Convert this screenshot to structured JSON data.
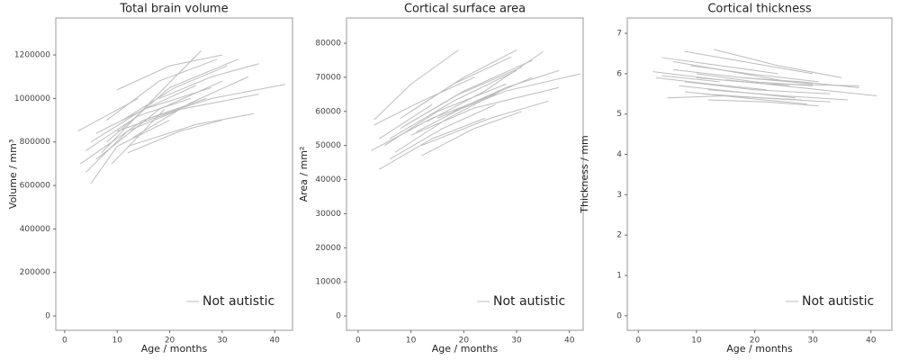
{
  "chart_data": [
    {
      "type": "line",
      "title": "Total brain volume",
      "x_label": "Age / months",
      "y_label": "Volume / mm³",
      "xlim": [
        -1.7,
        43.4
      ],
      "ylim": [
        -66000,
        1370000
      ],
      "xticks": [
        0,
        10,
        20,
        30,
        40
      ],
      "yticks": [
        0,
        200000,
        400000,
        600000,
        800000,
        1000000,
        1200000
      ],
      "legend": "bottom-right",
      "series": [
        {
          "name": "Not autistic",
          "color": "#bdbdbd",
          "lines": [
            {
              "x": [
                3,
                15,
                27
              ],
              "values": [
                700000,
                900000,
                1000000
              ]
            },
            {
              "x": [
                4,
                12,
                22
              ],
              "values": [
                660000,
                850000,
                950000
              ]
            },
            {
              "x": [
                5,
                10,
                20
              ],
              "values": [
                610000,
                780000,
                900000
              ]
            },
            {
              "x": [
                2.5,
                14
              ],
              "values": [
                850000,
                1000000
              ]
            },
            {
              "x": [
                6,
                18,
                30
              ],
              "values": [
                720000,
                950000,
                1080000
              ]
            },
            {
              "x": [
                8,
                20,
                33
              ],
              "values": [
                800000,
                1050000,
                1180000
              ]
            },
            {
              "x": [
                10,
                20,
                30
              ],
              "values": [
                1040000,
                1150000,
                1200000
              ]
            },
            {
              "x": [
                7,
                17,
                26
              ],
              "values": [
                750000,
                1000000,
                1220000
              ]
            },
            {
              "x": [
                12,
                25,
                36
              ],
              "values": [
                780000,
                880000,
                930000
              ]
            },
            {
              "x": [
                10,
                22,
                37
              ],
              "values": [
                850000,
                950000,
                1020000
              ]
            },
            {
              "x": [
                15,
                28,
                42
              ],
              "values": [
                900000,
                1000000,
                1065000
              ]
            },
            {
              "x": [
                5,
                15,
                28
              ],
              "values": [
                800000,
                950000,
                1050000
              ]
            },
            {
              "x": [
                9,
                19
              ],
              "values": [
                700000,
                950000
              ]
            },
            {
              "x": [
                11,
                21,
                31
              ],
              "values": [
                900000,
                1050000,
                1150000
              ]
            },
            {
              "x": [
                6,
                16,
                25
              ],
              "values": [
                840000,
                960000,
                1060000
              ]
            },
            {
              "x": [
                13,
                24,
                35
              ],
              "values": [
                820000,
                980000,
                1100000
              ]
            },
            {
              "x": [
                4,
                14,
                24
              ],
              "values": [
                760000,
                920000,
                1000000
              ]
            },
            {
              "x": [
                18,
                28,
                37
              ],
              "values": [
                1000000,
                1100000,
                1160000
              ]
            },
            {
              "x": [
                8,
                18,
                29
              ],
              "values": [
                900000,
                1080000,
                1180000
              ]
            },
            {
              "x": [
                12,
                22,
                30
              ],
              "values": [
                750000,
                850000,
                900000
              ]
            }
          ]
        }
      ]
    },
    {
      "type": "line",
      "title": "Cortical surface area",
      "x_label": "Age / months",
      "y_label": "Area / mm²",
      "xlim": [
        -2.2,
        42.6
      ],
      "ylim": [
        -4200,
        87400
      ],
      "xticks": [
        0,
        10,
        20,
        30,
        40
      ],
      "yticks": [
        0,
        10000,
        20000,
        30000,
        40000,
        50000,
        60000,
        70000,
        80000
      ],
      "legend": "bottom-right",
      "series": [
        {
          "name": "Not autistic",
          "color": "#bdbdbd",
          "lines": [
            {
              "x": [
                2.5,
                14,
                26
              ],
              "values": [
                48500,
                58000,
                65000
              ]
            },
            {
              "x": [
                3,
                12,
                22
              ],
              "values": [
                56000,
                63000,
                70000
              ]
            },
            {
              "x": [
                4,
                14,
                24
              ],
              "values": [
                43000,
                52000,
                58000
              ]
            },
            {
              "x": [
                5,
                15,
                28
              ],
              "values": [
                50000,
                60000,
                68000
              ]
            },
            {
              "x": [
                3,
                10,
                19
              ],
              "values": [
                57500,
                68000,
                78000
              ]
            },
            {
              "x": [
                6,
                18,
                30
              ],
              "values": [
                52000,
                63000,
                72000
              ]
            },
            {
              "x": [
                8,
                20,
                33
              ],
              "values": [
                55000,
                66000,
                75000
              ]
            },
            {
              "x": [
                10,
                20,
                30
              ],
              "values": [
                60000,
                70000,
                78000
              ]
            },
            {
              "x": [
                12,
                25,
                36
              ],
              "values": [
                50000,
                58000,
                63000
              ]
            },
            {
              "x": [
                10,
                22,
                38
              ],
              "values": [
                53000,
                61000,
                67000
              ]
            },
            {
              "x": [
                15,
                28,
                42
              ],
              "values": [
                58000,
                66000,
                71000
              ]
            },
            {
              "x": [
                7,
                17,
                27
              ],
              "values": [
                48000,
                58000,
                66000
              ]
            },
            {
              "x": [
                9,
                19,
                31
              ],
              "values": [
                56000,
                65000,
                73000
              ]
            },
            {
              "x": [
                11,
                21,
                33
              ],
              "values": [
                54000,
                62000,
                70000
              ]
            },
            {
              "x": [
                6,
                16,
                26
              ],
              "values": [
                46000,
                55000,
                62000
              ]
            },
            {
              "x": [
                13,
                24,
                35
              ],
              "values": [
                57000,
                66000,
                77500
              ]
            },
            {
              "x": [
                4,
                14
              ],
              "values": [
                52000,
                62000
              ]
            },
            {
              "x": [
                18,
                28,
                38
              ],
              "values": [
                60000,
                67000,
                72000
              ]
            },
            {
              "x": [
                8,
                18,
                29
              ],
              "values": [
                58000,
                68000,
                76000
              ]
            },
            {
              "x": [
                12,
                22,
                31
              ],
              "values": [
                47000,
                55000,
                60000
              ]
            }
          ]
        }
      ]
    },
    {
      "type": "line",
      "title": "Cortical thickness",
      "x_label": "Age / months",
      "y_label": "Thickness / mm",
      "xlim": [
        -1.9,
        43.6
      ],
      "ylim": [
        -0.36,
        7.38
      ],
      "xticks": [
        0,
        10,
        20,
        30,
        40
      ],
      "yticks": [
        0,
        1,
        2,
        3,
        4,
        5,
        6,
        7
      ],
      "legend": "bottom-right",
      "series": [
        {
          "name": "Not autistic",
          "color": "#bdbdbd",
          "lines": [
            {
              "x": [
                2.5,
                14,
                26
              ],
              "values": [
                6.05,
                5.85,
                5.7
              ]
            },
            {
              "x": [
                3,
                12,
                22
              ],
              "values": [
                5.9,
                5.75,
                5.6
              ]
            },
            {
              "x": [
                4,
                14,
                24
              ],
              "values": [
                6.4,
                6.2,
                6.0
              ]
            },
            {
              "x": [
                5,
                15,
                28
              ],
              "values": [
                5.4,
                5.45,
                5.35
              ]
            },
            {
              "x": [
                8,
                18,
                30
              ],
              "values": [
                6.55,
                6.3,
                6.0
              ]
            },
            {
              "x": [
                6,
                18,
                30
              ],
              "values": [
                6.1,
                5.9,
                5.75
              ]
            },
            {
              "x": [
                8,
                20,
                33
              ],
              "values": [
                5.8,
                5.6,
                5.5
              ]
            },
            {
              "x": [
                10,
                20,
                30
              ],
              "values": [
                6.0,
                5.8,
                5.7
              ]
            },
            {
              "x": [
                12,
                25,
                36
              ],
              "values": [
                5.6,
                5.45,
                5.35
              ]
            },
            {
              "x": [
                10,
                22,
                38
              ],
              "values": [
                5.9,
                5.75,
                5.7
              ]
            },
            {
              "x": [
                15,
                28,
                41
              ],
              "values": [
                5.85,
                5.65,
                5.45
              ]
            },
            {
              "x": [
                7,
                17,
                27
              ],
              "values": [
                5.7,
                5.55,
                5.4
              ]
            },
            {
              "x": [
                9,
                19,
                31
              ],
              "values": [
                6.2,
                6.0,
                5.8
              ]
            },
            {
              "x": [
                11,
                21,
                33
              ],
              "values": [
                5.5,
                5.4,
                5.3
              ]
            },
            {
              "x": [
                6,
                16,
                26
              ],
              "values": [
                6.3,
                6.05,
                5.8
              ]
            },
            {
              "x": [
                13,
                24,
                35
              ],
              "values": [
                6.6,
                6.2,
                5.9
              ]
            },
            {
              "x": [
                4,
                14
              ],
              "values": [
                5.95,
                5.8
              ]
            },
            {
              "x": [
                18,
                28,
                38
              ],
              "values": [
                5.9,
                5.8,
                5.65
              ]
            },
            {
              "x": [
                8,
                18,
                29
              ],
              "values": [
                5.55,
                5.4,
                5.25
              ]
            },
            {
              "x": [
                12,
                22,
                31
              ],
              "values": [
                5.35,
                5.3,
                5.2
              ]
            }
          ]
        }
      ]
    }
  ]
}
